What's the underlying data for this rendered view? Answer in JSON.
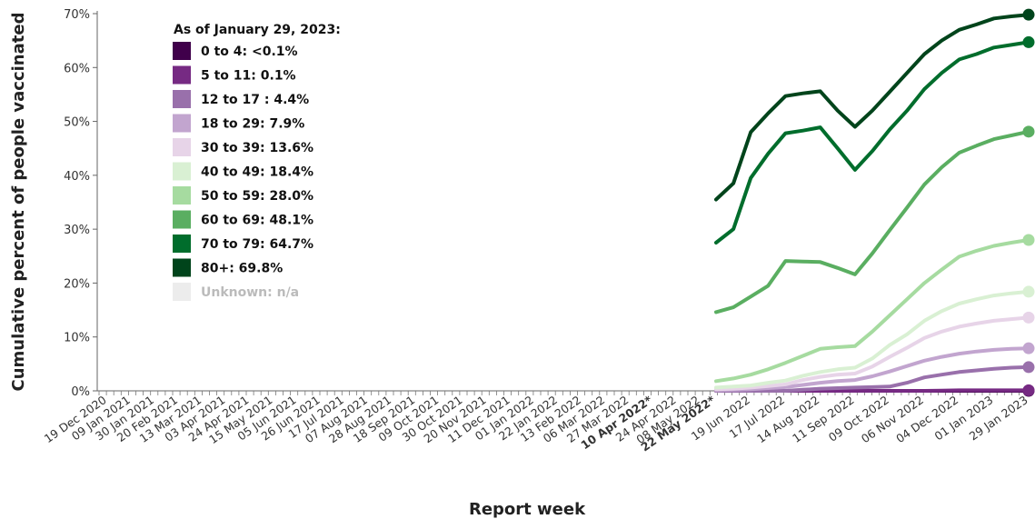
{
  "chart_data": {
    "type": "line",
    "title": "",
    "xlabel": "Report week",
    "ylabel": "Cumulative percent of people vaccinated",
    "ylim": [
      0,
      70
    ],
    "y_ticks": [
      "0%",
      "10%",
      "20%",
      "30%",
      "40%",
      "50%",
      "60%",
      "70%"
    ],
    "grid": false,
    "legend_position": "top-left",
    "legend_title": "As of January 29, 2023:",
    "x_tick_labels": [
      {
        "label": "19 Dec 2020",
        "bold": false
      },
      {
        "label": "09 Jan 2021",
        "bold": false
      },
      {
        "label": "30 Jan 2021",
        "bold": false
      },
      {
        "label": "20 Feb 2021",
        "bold": false
      },
      {
        "label": "13 Mar 2021",
        "bold": false
      },
      {
        "label": "03 Apr 2021",
        "bold": false
      },
      {
        "label": "24 Apr 2021",
        "bold": false
      },
      {
        "label": "15 May 2021",
        "bold": false
      },
      {
        "label": "05 Jun 2021",
        "bold": false
      },
      {
        "label": "26 Jun 2021",
        "bold": false
      },
      {
        "label": "17 Jul 2021",
        "bold": false
      },
      {
        "label": "07 Aug 2021",
        "bold": false
      },
      {
        "label": "28 Aug 2021",
        "bold": false
      },
      {
        "label": "18 Sep 2021",
        "bold": false
      },
      {
        "label": "09 Oct 2021",
        "bold": false
      },
      {
        "label": "30 Oct 2021",
        "bold": false
      },
      {
        "label": "20 Nov 2021",
        "bold": false
      },
      {
        "label": "11 Dec 2021",
        "bold": false
      },
      {
        "label": "01 Jan 2022",
        "bold": false
      },
      {
        "label": "22 Jan 2022",
        "bold": false
      },
      {
        "label": "13 Feb 2022",
        "bold": false
      },
      {
        "label": "06 Mar 2022",
        "bold": false
      },
      {
        "label": "27 Mar 2022",
        "bold": false
      },
      {
        "label": "10 Apr 2022*",
        "bold": true
      },
      {
        "label": "24 Apr 2022",
        "bold": false
      },
      {
        "label": "08 May 2022",
        "bold": false
      },
      {
        "label": "22 May 2022*",
        "bold": true
      },
      {
        "label": "19 Jun 2022",
        "bold": false
      },
      {
        "label": "17 Jul 2022",
        "bold": false
      },
      {
        "label": "14 Aug 2022",
        "bold": false
      },
      {
        "label": "11 Sep 2022",
        "bold": false
      },
      {
        "label": "09 Oct 2022",
        "bold": false
      },
      {
        "label": "06 Nov 2022",
        "bold": false
      },
      {
        "label": "04 Dec 2022",
        "bold": false
      },
      {
        "label": "01 Jan 2023",
        "bold": false
      },
      {
        "label": "29 Jan 2023",
        "bold": false
      }
    ],
    "x": [
      "22 May 2022",
      "05 Jun 2022",
      "19 Jun 2022",
      "03 Jul 2022",
      "17 Jul 2022",
      "31 Jul 2022",
      "14 Aug 2022",
      "28 Aug 2022",
      "11 Sep 2022",
      "25 Sep 2022",
      "09 Oct 2022",
      "23 Oct 2022",
      "06 Nov 2022",
      "20 Nov 2022",
      "04 Dec 2022",
      "18 Dec 2022",
      "01 Jan 2023",
      "15 Jan 2023",
      "29 Jan 2023"
    ],
    "series": [
      {
        "name": "80+: 69.8%",
        "color": "#00441b",
        "values": [
          35.5,
          38.5,
          48.0,
          51.5,
          54.7,
          55.2,
          55.6,
          52.0,
          49.0,
          52.0,
          55.5,
          59.0,
          62.5,
          65.0,
          67.0,
          68.0,
          69.1,
          69.5,
          69.8
        ]
      },
      {
        "name": "70 to 79: 64.7%",
        "color": "#006d2c",
        "values": [
          27.5,
          30.0,
          39.5,
          44.0,
          47.8,
          48.3,
          48.9,
          45.0,
          41.0,
          44.5,
          48.5,
          52.0,
          56.0,
          59.0,
          61.5,
          62.5,
          63.7,
          64.2,
          64.7
        ]
      },
      {
        "name": "60 to 69: 48.1%",
        "color": "#5aae61",
        "values": [
          14.6,
          15.5,
          17.5,
          19.5,
          24.1,
          24.0,
          23.9,
          22.8,
          21.6,
          25.5,
          29.8,
          34.0,
          38.3,
          41.5,
          44.2,
          45.5,
          46.7,
          47.4,
          48.1
        ]
      },
      {
        "name": "50 to 59: 28.0%",
        "color": "#a6dba0",
        "values": [
          1.8,
          2.3,
          3.0,
          4.0,
          5.2,
          6.5,
          7.8,
          8.1,
          8.3,
          11.0,
          14.0,
          17.0,
          20.0,
          22.5,
          24.9,
          26.0,
          26.9,
          27.5,
          28.0
        ]
      },
      {
        "name": "40 to 49: 18.4%",
        "color": "#d9f0d3",
        "values": [
          0.6,
          0.8,
          1.0,
          1.5,
          1.9,
          2.8,
          3.5,
          4.0,
          4.3,
          6.0,
          8.5,
          10.5,
          13.0,
          14.8,
          16.2,
          17.0,
          17.7,
          18.1,
          18.4
        ]
      },
      {
        "name": "30 to 39: 13.6%",
        "color": "#e7d4e8",
        "values": [
          0.3,
          0.4,
          0.6,
          0.9,
          1.2,
          2.0,
          2.6,
          3.0,
          3.2,
          4.5,
          6.3,
          8.0,
          9.8,
          11.0,
          11.9,
          12.5,
          13.0,
          13.3,
          13.6
        ]
      },
      {
        "name": "18 to 29: 7.9%",
        "color": "#c2a5cf",
        "values": [
          0.1,
          0.2,
          0.3,
          0.5,
          0.7,
          1.1,
          1.5,
          1.8,
          2.0,
          2.7,
          3.6,
          4.6,
          5.6,
          6.3,
          6.9,
          7.3,
          7.6,
          7.8,
          7.9
        ]
      },
      {
        "name": "12 to 17 : 4.4%",
        "color": "#9970ab",
        "values": [
          0,
          0,
          0,
          0,
          0,
          0.2,
          0.4,
          0.5,
          0.6,
          0.7,
          0.8,
          1.5,
          2.5,
          3.0,
          3.5,
          3.8,
          4.1,
          4.3,
          4.4
        ]
      },
      {
        "name": "5 to 11: 0.1%",
        "color": "#762a83",
        "values": [
          0,
          0,
          0,
          0,
          0,
          0,
          0,
          0,
          0,
          0,
          0,
          0,
          0,
          0.05,
          0.1,
          0.1,
          0.1,
          0.1,
          0.1
        ]
      },
      {
        "name": "0 to 4: <0.1%",
        "color": "#40004b",
        "values": [
          0,
          0,
          0,
          0,
          0,
          0,
          0,
          0,
          0,
          0,
          0,
          0,
          0,
          0,
          0,
          0,
          0,
          0,
          0
        ]
      }
    ],
    "legend": [
      {
        "label": "0 to 4: <0.1%",
        "color": "#40004b",
        "muted": false
      },
      {
        "label": "5 to 11: 0.1%",
        "color": "#762a83",
        "muted": false
      },
      {
        "label": "12 to 17 : 4.4%",
        "color": "#9970ab",
        "muted": false
      },
      {
        "label": "18 to 29: 7.9%",
        "color": "#c2a5cf",
        "muted": false
      },
      {
        "label": "30 to 39: 13.6%",
        "color": "#e7d4e8",
        "muted": false
      },
      {
        "label": "40 to 49: 18.4%",
        "color": "#d9f0d3",
        "muted": false
      },
      {
        "label": "50 to 59: 28.0%",
        "color": "#a6dba0",
        "muted": false
      },
      {
        "label": "60 to 69: 48.1%",
        "color": "#5aae61",
        "muted": false
      },
      {
        "label": "70 to 79: 64.7%",
        "color": "#006d2c",
        "muted": false
      },
      {
        "label": "80+: 69.8%",
        "color": "#00441b",
        "muted": false
      },
      {
        "label": "Unknown: n/a",
        "color": "#ececec",
        "muted": true
      }
    ]
  }
}
